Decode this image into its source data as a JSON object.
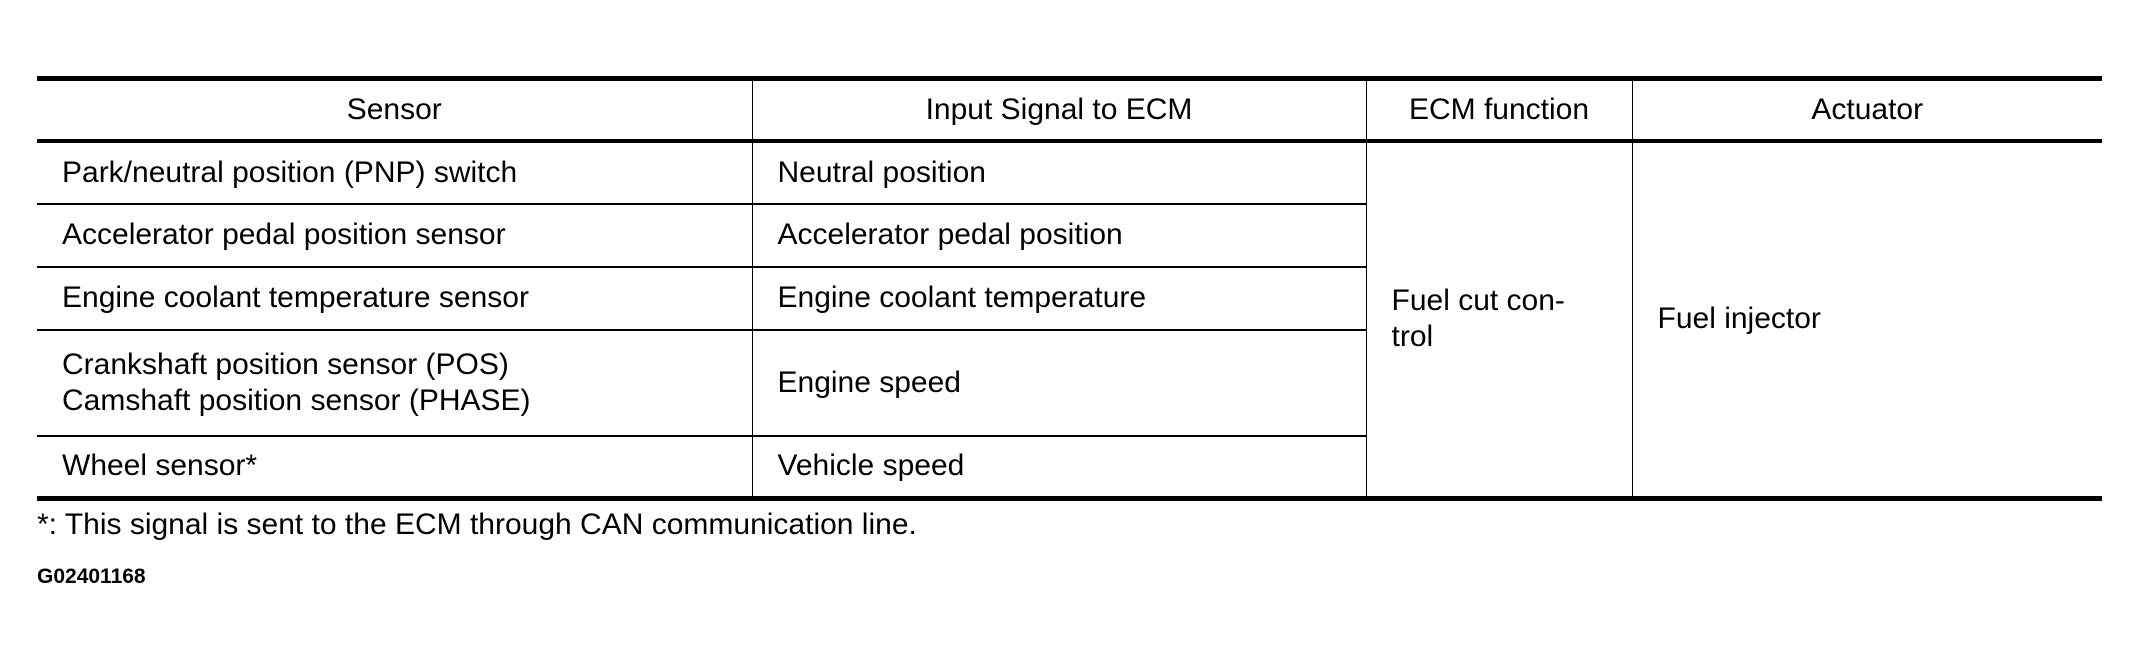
{
  "table": {
    "headers": [
      "Sensor",
      "Input Signal to ECM",
      "ECM function",
      "Actuator"
    ],
    "rows": [
      {
        "sensor": "Park/neutral position (PNP) switch",
        "signal": "Neutral position"
      },
      {
        "sensor": "Accelerator pedal position sensor",
        "signal": "Accelerator pedal position"
      },
      {
        "sensor": "Engine coolant temperature sensor",
        "signal": "Engine coolant temperature"
      },
      {
        "sensor": "Crankshaft position sensor (POS)",
        "sensor2": "Camshaft position sensor (PHASE)",
        "signal": "Engine speed"
      },
      {
        "sensor": "Wheel sensor*",
        "signal": "Vehicle speed"
      }
    ],
    "ecm_function": "Fuel cut con-",
    "ecm_function_line2": "trol",
    "actuator": "Fuel injector"
  },
  "footnote": "*: This signal is sent to the ECM through CAN communication line.",
  "figure_code": "G02401168"
}
